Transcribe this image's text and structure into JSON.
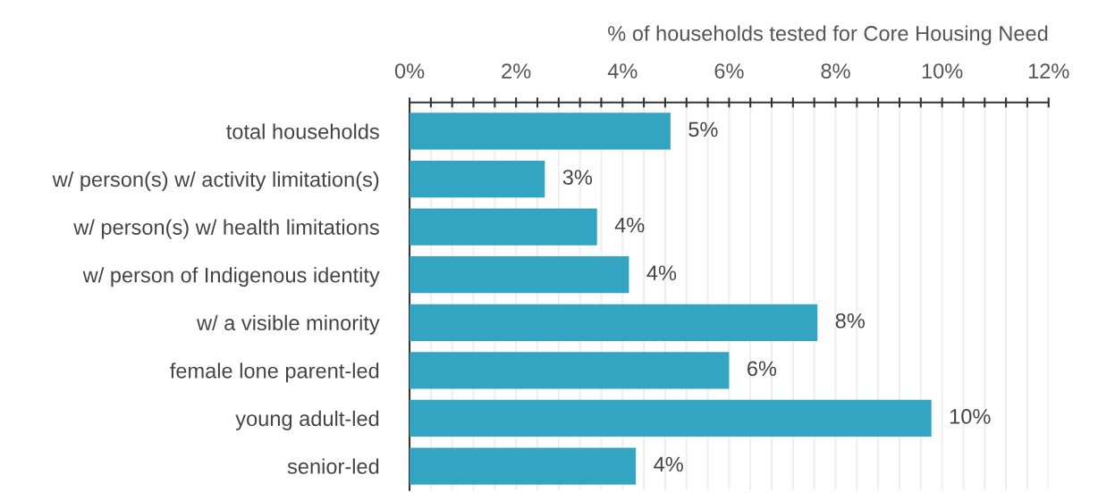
{
  "chart_data": {
    "type": "bar",
    "orientation": "horizontal",
    "xlabel": "% of households tested for Core Housing Need",
    "categories": [
      "total households",
      "w/ person(s) w/ activity limitation(s)",
      "w/ person(s) w/ health limitations",
      "w/ person of Indigenous identity",
      "w/ a visible minority",
      "female lone parent-led",
      "young adult-led",
      "senior-led"
    ],
    "values": [
      4.9,
      2.54,
      3.52,
      4.12,
      7.66,
      6.0,
      9.8,
      4.25
    ],
    "value_labels": [
      "5%",
      "3%",
      "4%",
      "4%",
      "8%",
      "6%",
      "10%",
      "4%"
    ],
    "color": "#33a5c3",
    "xlim": [
      0,
      12
    ],
    "xticks": [
      {
        "value": 0,
        "label": "0%"
      },
      {
        "value": 0.4,
        "label": null
      },
      {
        "value": 0.8,
        "label": null
      },
      {
        "value": 1.2,
        "label": null
      },
      {
        "value": 1.6,
        "label": null
      },
      {
        "value": 2,
        "label": "2%"
      },
      {
        "value": 2.4,
        "label": null
      },
      {
        "value": 2.8,
        "label": null
      },
      {
        "value": 3.2,
        "label": null
      },
      {
        "value": 3.6,
        "label": null
      },
      {
        "value": 4,
        "label": "4%"
      },
      {
        "value": 4.4,
        "label": null
      },
      {
        "value": 4.8,
        "label": null
      },
      {
        "value": 5.2,
        "label": null
      },
      {
        "value": 5.6,
        "label": null
      },
      {
        "value": 6,
        "label": "6%"
      },
      {
        "value": 6.4,
        "label": null
      },
      {
        "value": 6.8,
        "label": null
      },
      {
        "value": 7.2,
        "label": null
      },
      {
        "value": 7.6,
        "label": null
      },
      {
        "value": 8,
        "label": "8%"
      },
      {
        "value": 8.4,
        "label": null
      },
      {
        "value": 8.8,
        "label": null
      },
      {
        "value": 9.2,
        "label": null
      },
      {
        "value": 9.6,
        "label": null
      },
      {
        "value": 10,
        "label": "10%"
      },
      {
        "value": 10.4,
        "label": null
      },
      {
        "value": 10.8,
        "label": null
      },
      {
        "value": 11.2,
        "label": null
      },
      {
        "value": 11.6,
        "label": null
      },
      {
        "value": 12,
        "label": "12%"
      }
    ],
    "grid": "x"
  }
}
